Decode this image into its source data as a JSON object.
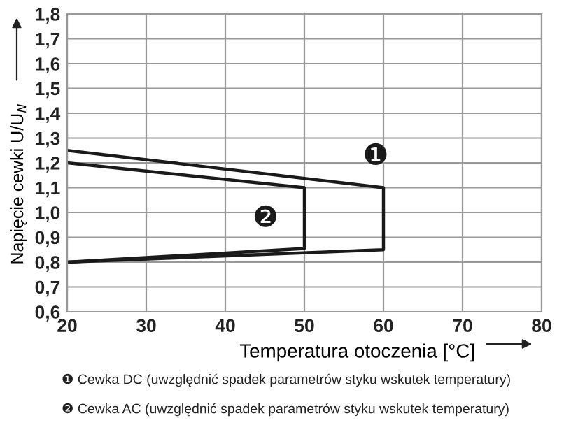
{
  "chart_data": {
    "type": "line",
    "xlabel": "Temperatura otoczenia [°C]",
    "ylabel": "Napięcie cewki U/U$_{N}$",
    "series": [
      {
        "name": "❶",
        "color": "#1a1a1a",
        "x": [
          20,
          60,
          60,
          20
        ],
        "values": [
          1.25,
          1.1,
          0.85,
          0.8
        ]
      },
      {
        "name": "❷",
        "color": "#1a1a1a",
        "x": [
          20,
          50,
          50,
          20
        ],
        "values": [
          1.2,
          1.1,
          0.855,
          0.8
        ]
      }
    ],
    "xlim": [
      20,
      80
    ],
    "xticks": [
      20,
      30,
      40,
      50,
      60,
      70,
      80
    ],
    "ylim": [
      0.6,
      1.8
    ],
    "yticks": [
      {
        "value": 0.6,
        "label": "0,6"
      },
      {
        "value": 0.7,
        "label": "0,7"
      },
      {
        "value": 0.8,
        "label": "0,8"
      },
      {
        "value": 0.9,
        "label": "0,9"
      },
      {
        "value": 1.0,
        "label": "1,0"
      },
      {
        "value": 1.1,
        "label": "1,1"
      },
      {
        "value": 1.2,
        "label": "1,2"
      },
      {
        "value": 1.3,
        "label": "1,3"
      },
      {
        "value": 1.4,
        "label": "1,4"
      },
      {
        "value": 1.5,
        "label": "1,5"
      },
      {
        "value": 1.6,
        "label": "1,6"
      },
      {
        "value": 1.7,
        "label": "1,7"
      },
      {
        "value": 1.8,
        "label": "1,8"
      }
    ],
    "grid": true,
    "marker": "none",
    "line_style": "solid",
    "annotations": [
      "❶ Cewka DC (uwzględnić spadek parametrów styku wskutek temperatury)",
      "❷ Cewka AC (uwzględnić spadek parametrów styku wskutek temperatury)"
    ]
  }
}
